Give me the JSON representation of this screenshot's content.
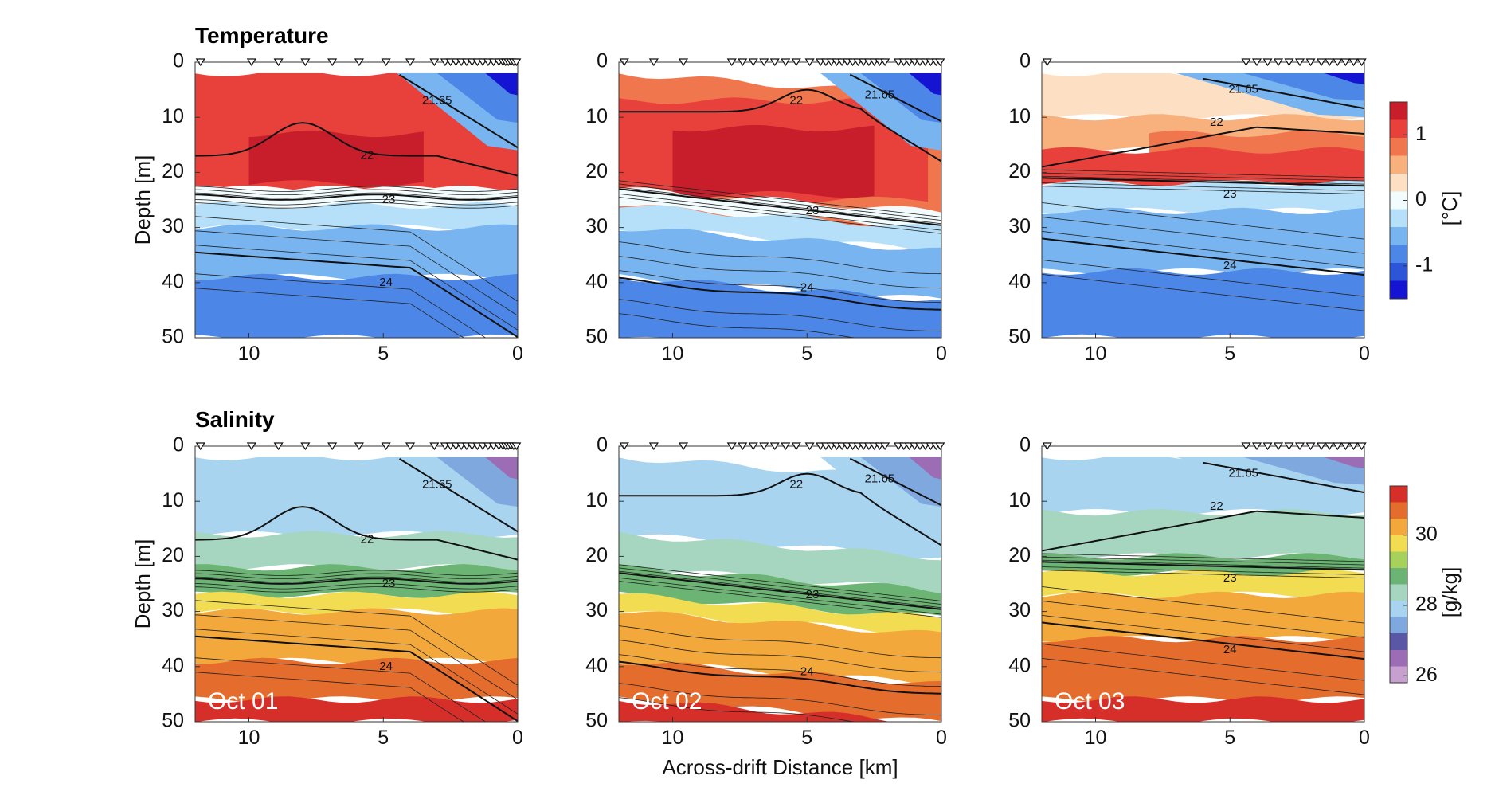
{
  "chart_data": [
    {
      "type": "heatmap",
      "panel": "temperature-oct01",
      "title": "Temperature",
      "ylabel": "Depth [m]",
      "xlim": [
        12,
        0
      ],
      "ylim": [
        0,
        50
      ],
      "xticks": [
        "10",
        "5",
        "0"
      ],
      "yticks": [
        "0",
        "10",
        "20",
        "30",
        "40",
        "50"
      ],
      "stations_km": [
        11.8,
        9.9,
        8.9,
        7.9,
        6.9,
        5.9,
        4.9,
        4.0,
        3.1,
        2.7,
        2.5,
        2.3,
        2.1,
        1.9,
        1.7,
        1.5,
        1.3,
        1.1,
        0.9,
        0.7,
        0.55,
        0.45,
        0.35,
        0.25,
        0.15,
        0.05
      ],
      "contour_labels": [
        {
          "text": "21.65",
          "x": 3.0,
          "depth": 7
        },
        {
          "text": "22",
          "x": 5.6,
          "depth": 17
        },
        {
          "text": "23",
          "x": 4.8,
          "depth": 25
        },
        {
          "text": "24",
          "x": 4.9,
          "depth": 40
        }
      ]
    },
    {
      "type": "heatmap",
      "panel": "temperature-oct02",
      "xlim": [
        12,
        0
      ],
      "ylim": [
        0,
        50
      ],
      "xticks": [
        "10",
        "5",
        "0"
      ],
      "yticks": [
        "0",
        "10",
        "20",
        "30",
        "40",
        "50"
      ],
      "stations_km": [
        11.8,
        10.7,
        9.6,
        7.8,
        7.4,
        7.0,
        6.6,
        6.2,
        5.8,
        5.4,
        4.9,
        4.5,
        4.3,
        4.1,
        3.9,
        3.7,
        3.5,
        3.3,
        3.1,
        2.9,
        2.7,
        2.5,
        2.3,
        2.1,
        1.6,
        1.4,
        1.2,
        1.0,
        0.8,
        0.6,
        0.4,
        0.2,
        0.05
      ],
      "contour_labels": [
        {
          "text": "21.65",
          "x": 2.3,
          "depth": 6
        },
        {
          "text": "22",
          "x": 5.4,
          "depth": 7
        },
        {
          "text": "23",
          "x": 4.8,
          "depth": 27
        },
        {
          "text": "24",
          "x": 5.0,
          "depth": 41
        }
      ]
    },
    {
      "type": "heatmap",
      "panel": "temperature-oct03",
      "xlim": [
        12,
        0
      ],
      "ylim": [
        0,
        50
      ],
      "xticks": [
        "10",
        "5",
        "0"
      ],
      "yticks": [
        "0",
        "10",
        "20",
        "30",
        "40",
        "50"
      ],
      "stations_km": [
        11.8,
        4.4,
        4.0,
        3.6,
        3.2,
        2.8,
        2.4,
        2.0,
        1.6,
        1.3,
        1.0,
        0.7,
        0.4,
        0.1
      ],
      "contour_labels": [
        {
          "text": "21.65",
          "x": 4.5,
          "depth": 5
        },
        {
          "text": "22",
          "x": 5.5,
          "depth": 11
        },
        {
          "text": "23",
          "x": 5.0,
          "depth": 24
        },
        {
          "text": "24",
          "x": 5.0,
          "depth": 37
        }
      ],
      "colorbar": {
        "label": "[°C]",
        "ticks": [
          "1",
          "0",
          "-1"
        ],
        "range": [
          -1.5,
          1.5
        ]
      }
    },
    {
      "type": "heatmap",
      "panel": "salinity-oct01",
      "title": "Salinity",
      "ylabel": "Depth [m]",
      "date": "Oct 01",
      "xlim": [
        12,
        0
      ],
      "ylim": [
        0,
        50
      ],
      "xticks": [
        "10",
        "5",
        "0"
      ],
      "yticks": [
        "0",
        "10",
        "20",
        "30",
        "40",
        "50"
      ],
      "contour_labels": [
        {
          "text": "21.65",
          "x": 3.0,
          "depth": 7
        },
        {
          "text": "22",
          "x": 5.6,
          "depth": 17
        },
        {
          "text": "23",
          "x": 4.8,
          "depth": 25
        },
        {
          "text": "24",
          "x": 4.9,
          "depth": 40
        }
      ]
    },
    {
      "type": "heatmap",
      "panel": "salinity-oct02",
      "date": "Oct 02",
      "xlabel": "Across-drift Distance [km]",
      "xlim": [
        12,
        0
      ],
      "ylim": [
        0,
        50
      ],
      "xticks": [
        "10",
        "5",
        "0"
      ],
      "yticks": [
        "0",
        "10",
        "20",
        "30",
        "40",
        "50"
      ],
      "contour_labels": [
        {
          "text": "21.65",
          "x": 2.3,
          "depth": 6
        },
        {
          "text": "22",
          "x": 5.4,
          "depth": 7
        },
        {
          "text": "23",
          "x": 4.8,
          "depth": 27
        },
        {
          "text": "24",
          "x": 5.0,
          "depth": 41
        }
      ]
    },
    {
      "type": "heatmap",
      "panel": "salinity-oct03",
      "date": "Oct 03",
      "xlim": [
        12,
        0
      ],
      "ylim": [
        0,
        50
      ],
      "xticks": [
        "10",
        "5",
        "0"
      ],
      "yticks": [
        "0",
        "10",
        "20",
        "30",
        "40",
        "50"
      ],
      "contour_labels": [
        {
          "text": "21.65",
          "x": 4.5,
          "depth": 5
        },
        {
          "text": "22",
          "x": 5.5,
          "depth": 11
        },
        {
          "text": "23",
          "x": 5.0,
          "depth": 24
        },
        {
          "text": "24",
          "x": 5.0,
          "depth": 37
        }
      ],
      "colorbar": {
        "label": "[g/kg]",
        "ticks": [
          "30",
          "28",
          "26"
        ],
        "range": [
          25.8,
          31.4
        ]
      }
    }
  ],
  "colors": {
    "temperature": [
      "#1414d2",
      "#2d55d8",
      "#4c86e6",
      "#78b4f0",
      "#b6e0fa",
      "#f2fbfd",
      "#fde0c4",
      "#f8b07c",
      "#f0764e",
      "#e8413c",
      "#c81e2c"
    ],
    "salinity": [
      "#c8a0d0",
      "#9c6cb4",
      "#5a58a6",
      "#7ea8de",
      "#a8d4f0",
      "#a6d6c0",
      "#6cb474",
      "#a6d25c",
      "#f2dc52",
      "#f2a83a",
      "#e46c2c",
      "#d62f2a"
    ]
  }
}
